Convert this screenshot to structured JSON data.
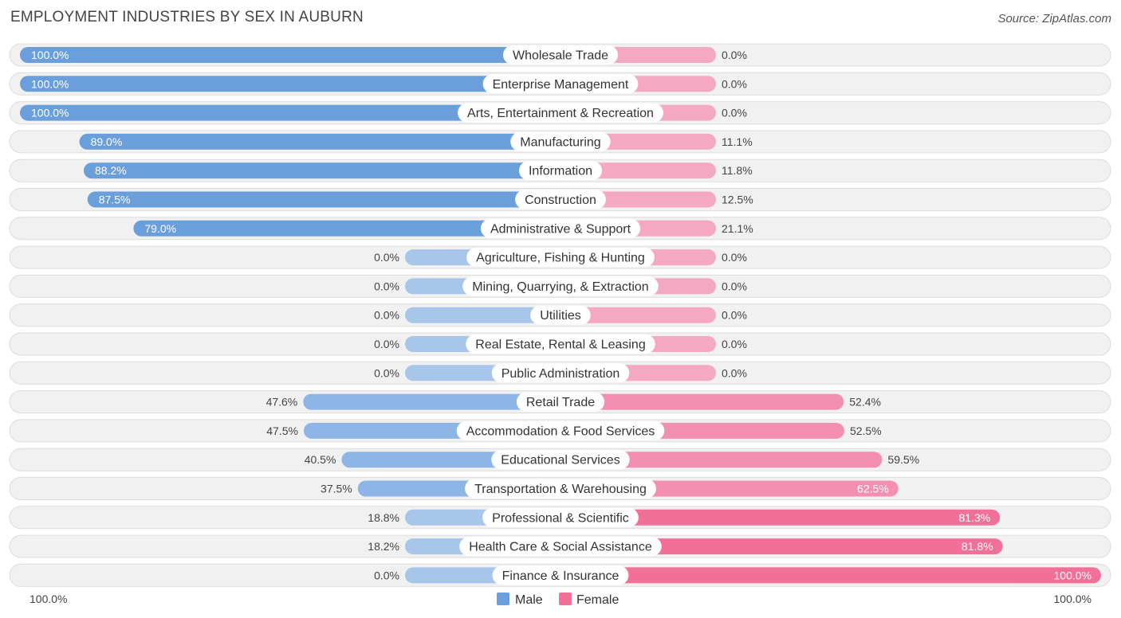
{
  "header": {
    "title": "EMPLOYMENT INDUSTRIES BY SEX IN AUBURN",
    "source": "Source: ZipAtlas.com"
  },
  "colors": {
    "male_strong": "#6a9fdc",
    "male_light": "#a8c6ea",
    "female_strong": "#f07098",
    "female_light": "#f5a8c2"
  },
  "chart_data": {
    "type": "bar",
    "orientation": "horizontal-diverging",
    "title": "EMPLOYMENT INDUSTRIES BY SEX IN AUBURN",
    "categories": [
      "Wholesale Trade",
      "Enterprise Management",
      "Arts, Entertainment & Recreation",
      "Manufacturing",
      "Information",
      "Construction",
      "Administrative & Support",
      "Agriculture, Fishing & Hunting",
      "Mining, Quarrying, & Extraction",
      "Utilities",
      "Real Estate, Rental & Leasing",
      "Public Administration",
      "Retail Trade",
      "Accommodation & Food Services",
      "Educational Services",
      "Transportation & Warehousing",
      "Professional & Scientific",
      "Health Care & Social Assistance",
      "Finance & Insurance"
    ],
    "series": [
      {
        "name": "Male",
        "values": [
          100.0,
          100.0,
          100.0,
          89.0,
          88.2,
          87.5,
          79.0,
          0.0,
          0.0,
          0.0,
          0.0,
          0.0,
          47.6,
          47.5,
          40.5,
          37.5,
          18.8,
          18.2,
          0.0
        ],
        "labels": [
          "100.0%",
          "100.0%",
          "100.0%",
          "89.0%",
          "88.2%",
          "87.5%",
          "79.0%",
          "0.0%",
          "0.0%",
          "0.0%",
          "0.0%",
          "0.0%",
          "47.6%",
          "47.5%",
          "40.5%",
          "37.5%",
          "18.8%",
          "18.2%",
          "0.0%"
        ]
      },
      {
        "name": "Female",
        "values": [
          0.0,
          0.0,
          0.0,
          11.1,
          11.8,
          12.5,
          21.1,
          0.0,
          0.0,
          0.0,
          0.0,
          0.0,
          52.4,
          52.5,
          59.5,
          62.5,
          81.3,
          81.8,
          100.0
        ],
        "labels": [
          "0.0%",
          "0.0%",
          "0.0%",
          "11.1%",
          "11.8%",
          "12.5%",
          "21.1%",
          "0.0%",
          "0.0%",
          "0.0%",
          "0.0%",
          "0.0%",
          "52.4%",
          "52.5%",
          "59.5%",
          "62.5%",
          "81.3%",
          "81.8%",
          "100.0%"
        ]
      }
    ],
    "xlim": [
      -100,
      100
    ],
    "axis_left_label": "100.0%",
    "axis_right_label": "100.0%",
    "legend": [
      "Male",
      "Female"
    ],
    "legend_position": "bottom-center"
  }
}
